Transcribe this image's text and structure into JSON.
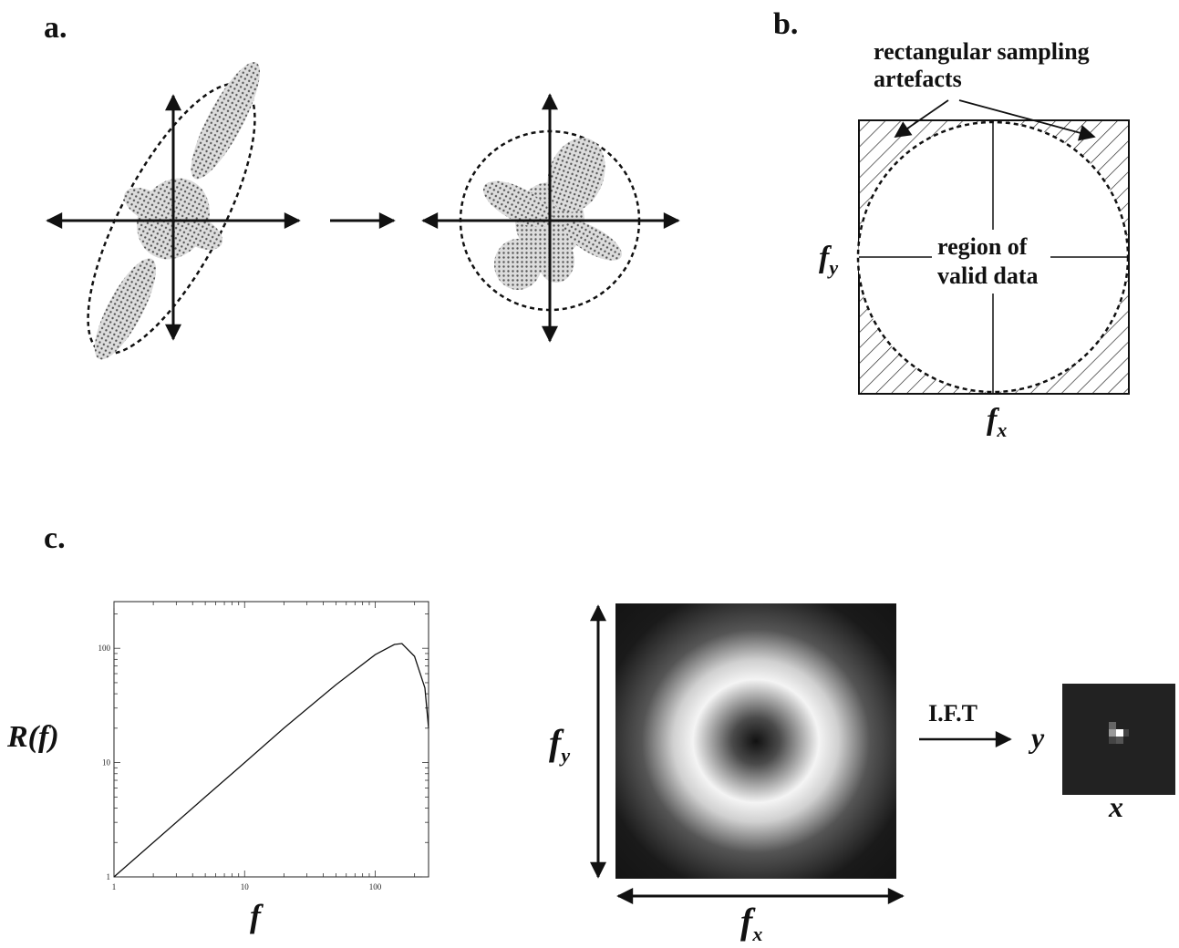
{
  "panel_labels": {
    "a": "a.",
    "b": "b.",
    "c": "c."
  },
  "panel_b": {
    "annotation_line1": "rectangular sampling",
    "annotation_line2": "artefacts",
    "center_line1": "region of",
    "center_line2": "valid data",
    "axis_y": "f",
    "axis_y_sub": "y",
    "axis_x": "f",
    "axis_x_sub": "x"
  },
  "panel_c": {
    "plot_ylabel": "R(f)",
    "plot_xlabel": "f",
    "plot_xticks": [
      "1",
      "10",
      "100"
    ],
    "plot_yticks": [
      "1",
      "10",
      "100"
    ],
    "map_ylabel": "f",
    "map_ylabel_sub": "y",
    "map_xlabel": "f",
    "map_xlabel_sub": "x",
    "transform_label": "I.F.T",
    "result_ylabel": "y",
    "result_xlabel": "x"
  },
  "chart_data": {
    "type": "line",
    "xlabel": "f",
    "ylabel": "R(f)",
    "xscale": "log",
    "yscale": "log",
    "xlim": [
      1,
      256
    ],
    "ylim": [
      1,
      256
    ],
    "series": [
      {
        "x": [
          1,
          2,
          5,
          10,
          20,
          50,
          100,
          140,
          160,
          200,
          240,
          256
        ],
        "values": [
          1,
          2,
          5,
          10,
          20,
          48,
          88,
          108,
          110,
          85,
          45,
          20
        ]
      }
    ]
  },
  "colors": {
    "ink": "#111111",
    "stipple": "#9a9a9a",
    "map_dark": "#1a1a1a",
    "map_ring": "#f2f2f2"
  }
}
